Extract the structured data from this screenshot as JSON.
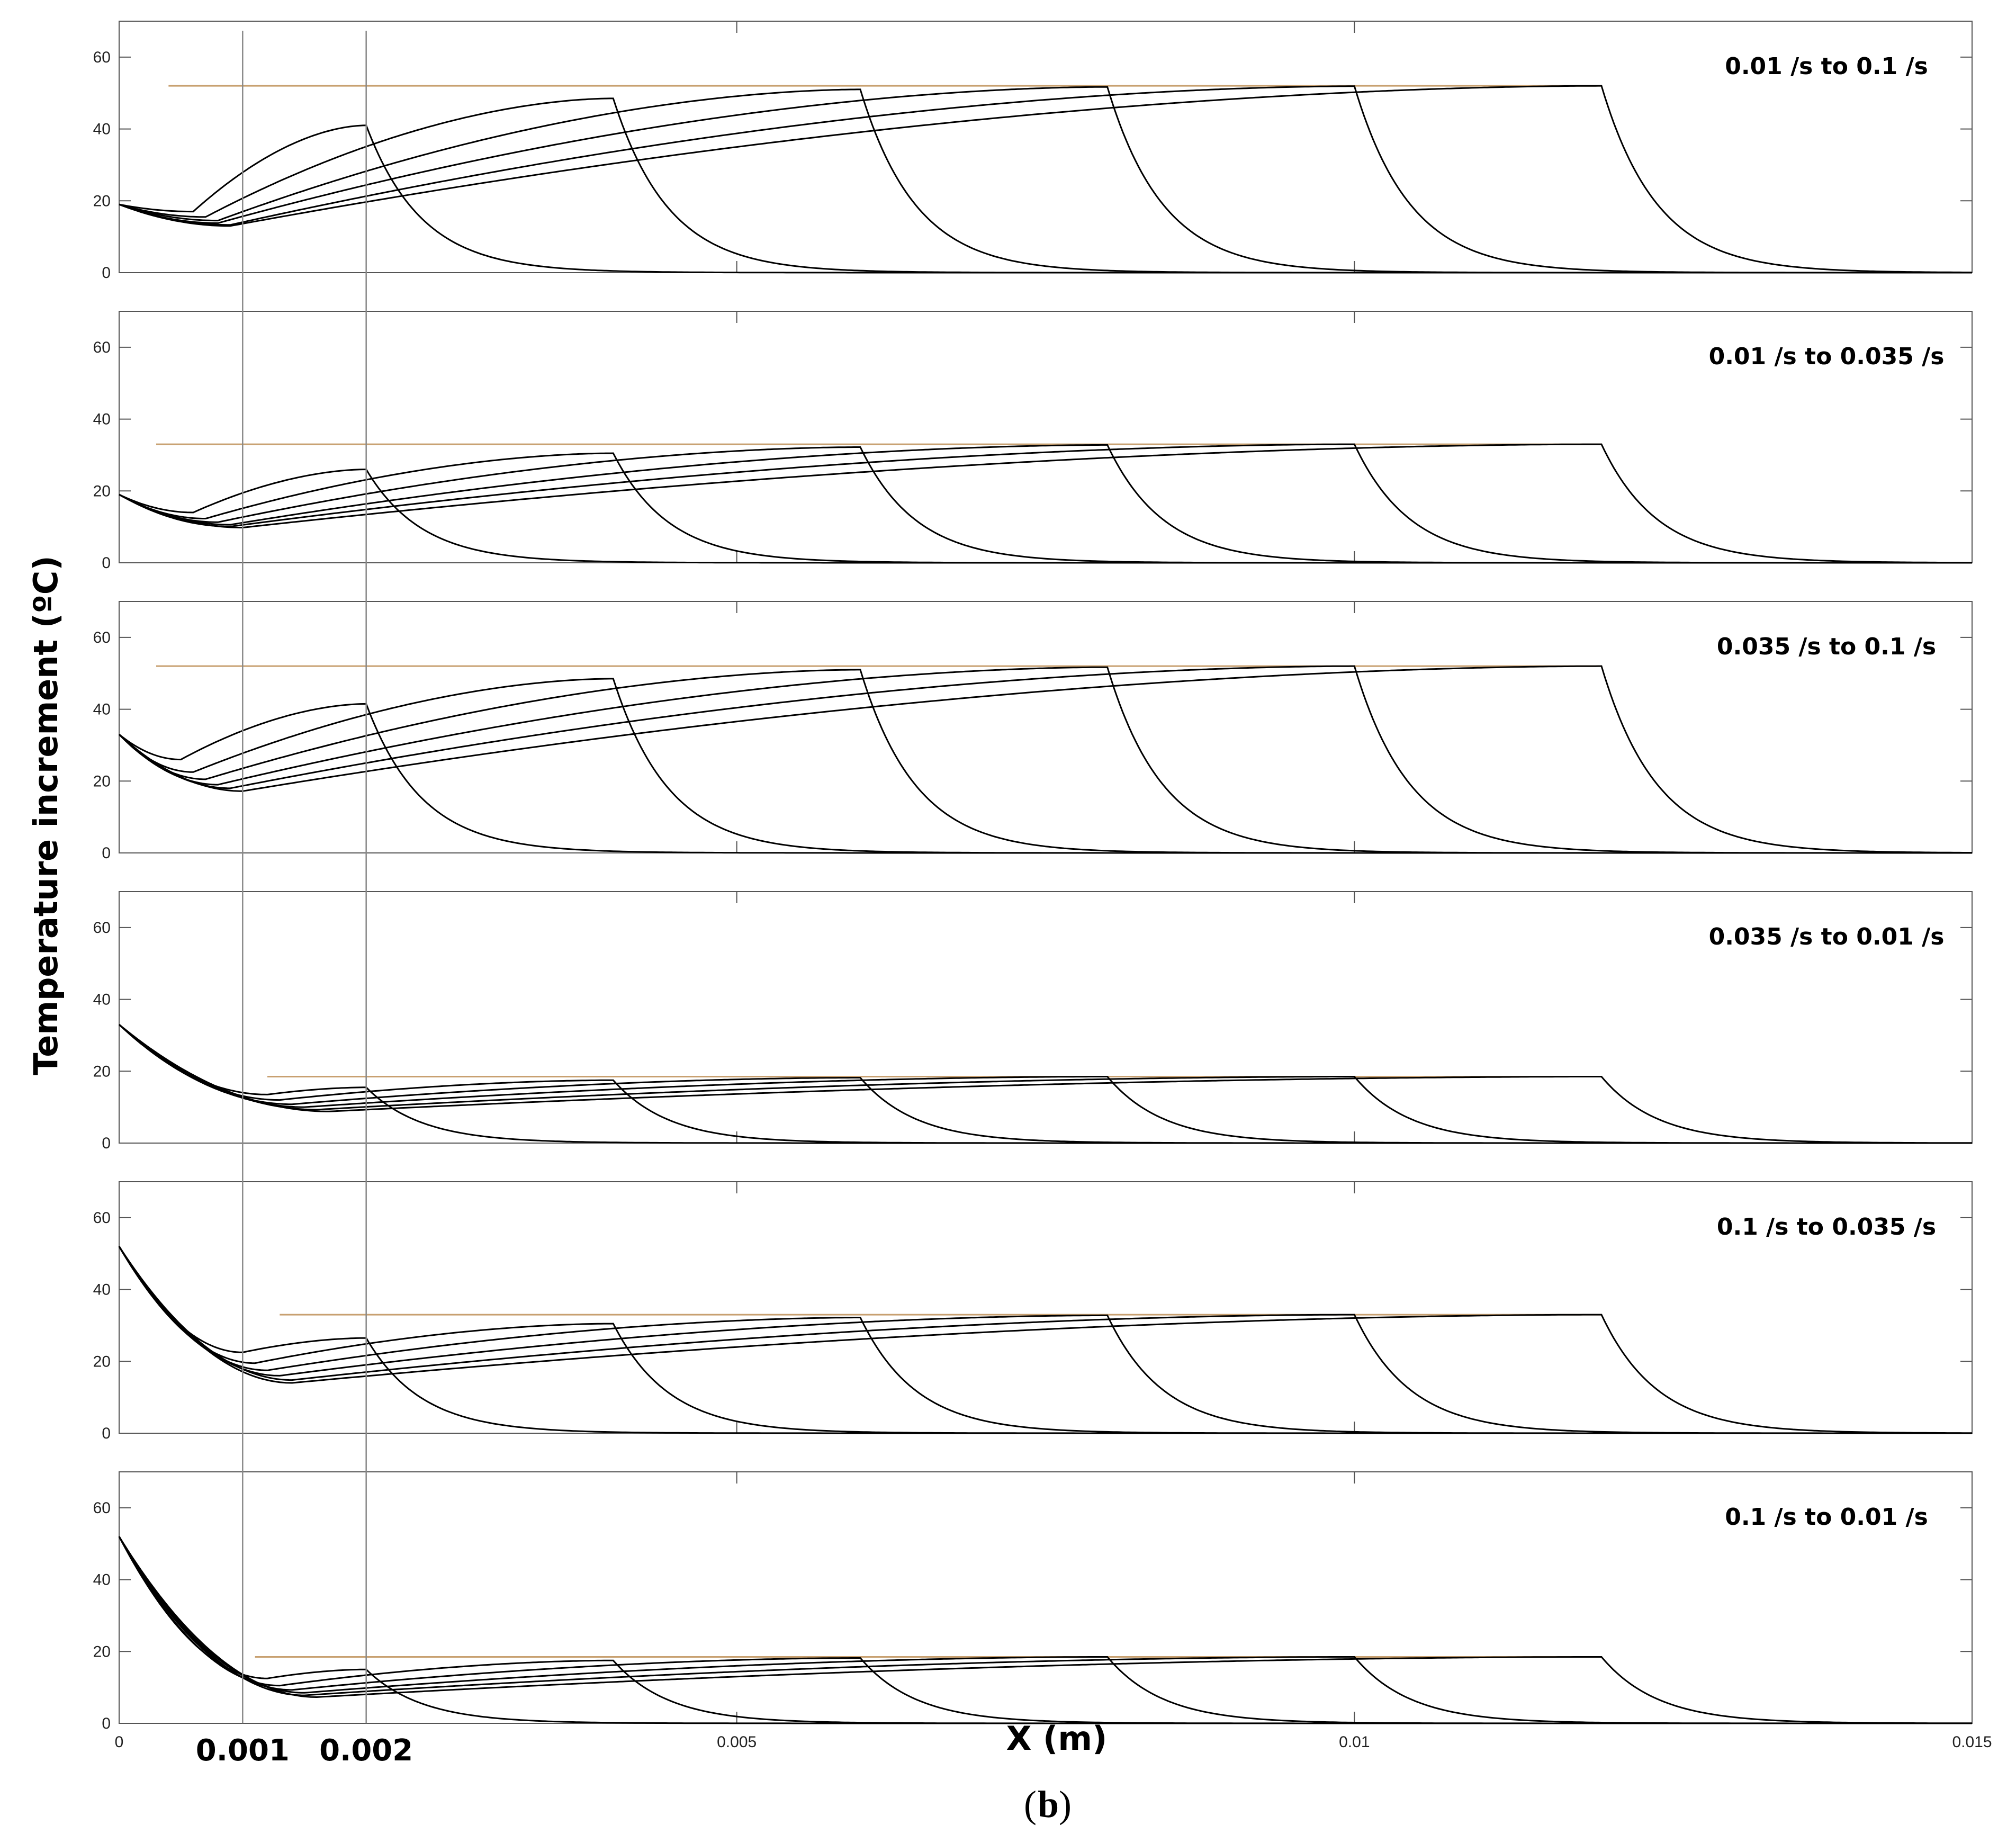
{
  "chart_data": {
    "type": "line",
    "figure_label": "b",
    "ylabel": "Temperature increment (ºC)",
    "xlabel": "X (m)",
    "xlim": [
      0,
      0.015
    ],
    "ylim": [
      0,
      70
    ],
    "x_ticks": [
      0,
      0.005,
      0.01,
      0.015
    ],
    "x_tick_labels": [
      "0",
      "0.005",
      "0.01",
      "0.015"
    ],
    "y_ticks": [
      0,
      20,
      40,
      60
    ],
    "y_tick_labels": [
      "0",
      "20",
      "40",
      "60"
    ],
    "reference_lines_x": [
      0.001,
      0.002
    ],
    "reference_line_labels": [
      "0.001",
      "0.002"
    ],
    "line_color": "#000000",
    "steady_line_color": "#c8a070",
    "grid": false,
    "panels": [
      {
        "title": "0.01 /s to 0.1 /s",
        "start_value": 19,
        "end_value": 52,
        "steady_value": 52,
        "steady_from_x": 0.0004,
        "series": [
          {
            "name": "front at 0.002",
            "front_x": 0.002,
            "peak_value": 41,
            "min_value": 17,
            "min_x": 0.0006
          },
          {
            "name": "front at 0.004",
            "front_x": 0.004,
            "peak_value": 48.5,
            "min_value": 15.5,
            "min_x": 0.0007
          },
          {
            "name": "front at 0.006",
            "front_x": 0.006,
            "peak_value": 51,
            "min_value": 14.5,
            "min_x": 0.0008
          },
          {
            "name": "front at 0.008",
            "front_x": 0.008,
            "peak_value": 51.7,
            "min_value": 13.8,
            "min_x": 0.0008
          },
          {
            "name": "front at 0.01",
            "front_x": 0.01,
            "peak_value": 51.9,
            "min_value": 13.3,
            "min_x": 0.0009
          },
          {
            "name": "front at 0.012",
            "front_x": 0.012,
            "peak_value": 52,
            "min_value": 13,
            "min_x": 0.0009
          }
        ]
      },
      {
        "title": "0.01 /s to 0.035 /s",
        "start_value": 19,
        "end_value": 33,
        "steady_value": 33,
        "steady_from_x": 0.0003,
        "series": [
          {
            "name": "front at 0.002",
            "front_x": 0.002,
            "peak_value": 26,
            "min_value": 14,
            "min_x": 0.0006
          },
          {
            "name": "front at 0.004",
            "front_x": 0.004,
            "peak_value": 30.5,
            "min_value": 12.3,
            "min_x": 0.0007
          },
          {
            "name": "front at 0.006",
            "front_x": 0.006,
            "peak_value": 32.2,
            "min_value": 11.3,
            "min_x": 0.0008
          },
          {
            "name": "front at 0.008",
            "front_x": 0.008,
            "peak_value": 32.8,
            "min_value": 10.6,
            "min_x": 0.0009
          },
          {
            "name": "front at 0.01",
            "front_x": 0.01,
            "peak_value": 33,
            "min_value": 10.1,
            "min_x": 0.0009
          },
          {
            "name": "front at 0.012",
            "front_x": 0.012,
            "peak_value": 33,
            "min_value": 9.8,
            "min_x": 0.001
          }
        ]
      },
      {
        "title": "0.035 /s to 0.1 /s",
        "start_value": 33,
        "end_value": 52,
        "steady_value": 52,
        "steady_from_x": 0.0003,
        "series": [
          {
            "name": "front at 0.002",
            "front_x": 0.002,
            "peak_value": 41.5,
            "min_value": 26,
            "min_x": 0.0005
          },
          {
            "name": "front at 0.004",
            "front_x": 0.004,
            "peak_value": 48.5,
            "min_value": 22.5,
            "min_x": 0.0006
          },
          {
            "name": "front at 0.006",
            "front_x": 0.006,
            "peak_value": 51,
            "min_value": 20.5,
            "min_x": 0.0007
          },
          {
            "name": "front at 0.008",
            "front_x": 0.008,
            "peak_value": 51.7,
            "min_value": 19,
            "min_x": 0.0008
          },
          {
            "name": "front at 0.01",
            "front_x": 0.01,
            "peak_value": 52,
            "min_value": 18,
            "min_x": 0.0009
          },
          {
            "name": "front at 0.012",
            "front_x": 0.012,
            "peak_value": 52,
            "min_value": 17.2,
            "min_x": 0.001
          }
        ]
      },
      {
        "title": "0.035 /s to 0.01 /s",
        "start_value": 33,
        "end_value": 18.5,
        "steady_value": 18.5,
        "steady_from_x": 0.0012,
        "series": [
          {
            "name": "front at 0.002",
            "front_x": 0.002,
            "peak_value": 15.5,
            "min_value": 13.5,
            "min_x": 0.0012
          },
          {
            "name": "front at 0.004",
            "front_x": 0.004,
            "peak_value": 17.5,
            "min_value": 12,
            "min_x": 0.0013
          },
          {
            "name": "front at 0.006",
            "front_x": 0.006,
            "peak_value": 18.2,
            "min_value": 10.8,
            "min_x": 0.0014
          },
          {
            "name": "front at 0.008",
            "front_x": 0.008,
            "peak_value": 18.5,
            "min_value": 10,
            "min_x": 0.0015
          },
          {
            "name": "front at 0.01",
            "front_x": 0.01,
            "peak_value": 18.5,
            "min_value": 9.3,
            "min_x": 0.0016
          },
          {
            "name": "front at 0.012",
            "front_x": 0.012,
            "peak_value": 18.5,
            "min_value": 8.8,
            "min_x": 0.0017
          }
        ]
      },
      {
        "title": "0.1 /s to 0.035 /s",
        "start_value": 52,
        "end_value": 33,
        "steady_value": 33,
        "steady_from_x": 0.0013,
        "series": [
          {
            "name": "front at 0.002",
            "front_x": 0.002,
            "peak_value": 26.5,
            "min_value": 22.5,
            "min_x": 0.001
          },
          {
            "name": "front at 0.004",
            "front_x": 0.004,
            "peak_value": 30.5,
            "min_value": 19.5,
            "min_x": 0.0011
          },
          {
            "name": "front at 0.006",
            "front_x": 0.006,
            "peak_value": 32.2,
            "min_value": 17.5,
            "min_x": 0.0012
          },
          {
            "name": "front at 0.008",
            "front_x": 0.008,
            "peak_value": 32.8,
            "min_value": 16,
            "min_x": 0.0013
          },
          {
            "name": "front at 0.01",
            "front_x": 0.01,
            "peak_value": 33,
            "min_value": 14.8,
            "min_x": 0.0014
          },
          {
            "name": "front at 0.012",
            "front_x": 0.012,
            "peak_value": 33,
            "min_value": 14,
            "min_x": 0.0014
          }
        ]
      },
      {
        "title": "0.1 /s to 0.01 /s",
        "start_value": 52,
        "end_value": 18.5,
        "steady_value": 18.5,
        "steady_from_x": 0.0011,
        "series": [
          {
            "name": "front at 0.002",
            "front_x": 0.002,
            "peak_value": 15,
            "min_value": 12.5,
            "min_x": 0.0012
          },
          {
            "name": "front at 0.004",
            "front_x": 0.004,
            "peak_value": 17.5,
            "min_value": 10.5,
            "min_x": 0.0013
          },
          {
            "name": "front at 0.006",
            "front_x": 0.006,
            "peak_value": 18.2,
            "min_value": 9.3,
            "min_x": 0.0014
          },
          {
            "name": "front at 0.008",
            "front_x": 0.008,
            "peak_value": 18.5,
            "min_value": 8.5,
            "min_x": 0.0015
          },
          {
            "name": "front at 0.01",
            "front_x": 0.01,
            "peak_value": 18.5,
            "min_value": 7.8,
            "min_x": 0.0015
          },
          {
            "name": "front at 0.012",
            "front_x": 0.012,
            "peak_value": 18.5,
            "min_value": 7.3,
            "min_x": 0.0016
          }
        ]
      }
    ]
  }
}
